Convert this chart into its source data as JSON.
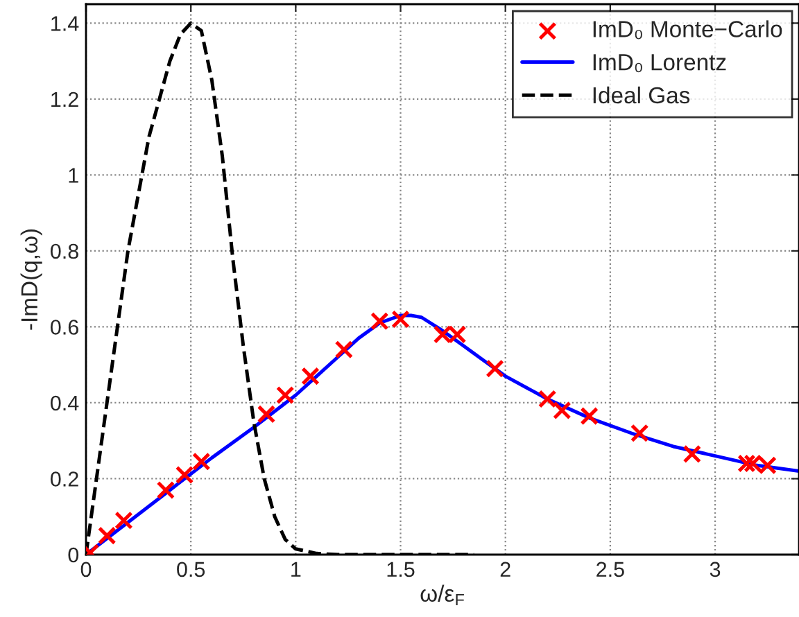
{
  "chart_data": {
    "type": "line",
    "xlabel": "ω/ε$_{F}$",
    "ylabel": "-ImD(q,ω)",
    "xlim": [
      0,
      3.4
    ],
    "ylim": [
      0,
      1.45
    ],
    "xticks": [
      0,
      0.5,
      1,
      1.5,
      2,
      2.5,
      3
    ],
    "yticks": [
      0,
      0.2,
      0.4,
      0.6,
      0.8,
      1,
      1.2,
      1.4
    ],
    "grid": true,
    "legend": "top right",
    "series": [
      {
        "name": "ImD₀ Monte−Carlo",
        "type": "scatter",
        "marker": "cross",
        "color": "#ff0000",
        "x": [
          0.02,
          0.1,
          0.18,
          0.38,
          0.47,
          0.55,
          0.86,
          0.95,
          1.07,
          1.23,
          1.4,
          1.5,
          1.7,
          1.77,
          1.95,
          2.2,
          2.27,
          2.4,
          2.64,
          2.89,
          3.15,
          3.18,
          3.25
        ],
        "values": [
          0.005,
          0.05,
          0.09,
          0.17,
          0.21,
          0.245,
          0.37,
          0.42,
          0.47,
          0.54,
          0.615,
          0.62,
          0.58,
          0.58,
          0.49,
          0.41,
          0.38,
          0.365,
          0.32,
          0.265,
          0.24,
          0.24,
          0.235
        ]
      },
      {
        "name": "ImD₀ Lorentz",
        "line_style": "solid",
        "color": "#0000ff",
        "x": [
          0,
          0.2,
          0.4,
          0.6,
          0.8,
          1.0,
          1.1,
          1.2,
          1.3,
          1.4,
          1.5,
          1.55,
          1.6,
          1.7,
          1.8,
          1.9,
          2.0,
          2.2,
          2.4,
          2.6,
          2.8,
          3.0,
          3.2,
          3.4
        ],
        "values": [
          0,
          0.085,
          0.17,
          0.255,
          0.335,
          0.42,
          0.47,
          0.52,
          0.57,
          0.61,
          0.63,
          0.63,
          0.625,
          0.59,
          0.55,
          0.51,
          0.47,
          0.41,
          0.36,
          0.32,
          0.285,
          0.26,
          0.235,
          0.22
        ]
      },
      {
        "name": "Ideal Gas",
        "line_style": "dashed",
        "color": "#000000",
        "x": [
          0,
          0.05,
          0.1,
          0.2,
          0.3,
          0.4,
          0.45,
          0.5,
          0.55,
          0.6,
          0.65,
          0.7,
          0.75,
          0.8,
          0.85,
          0.9,
          0.95,
          1.0,
          1.1,
          1.2,
          1.85
        ],
        "values": [
          0,
          0.2,
          0.4,
          0.8,
          1.1,
          1.3,
          1.37,
          1.4,
          1.38,
          1.25,
          1.05,
          0.78,
          0.55,
          0.35,
          0.2,
          0.1,
          0.04,
          0.015,
          0.003,
          0,
          0
        ]
      }
    ]
  }
}
